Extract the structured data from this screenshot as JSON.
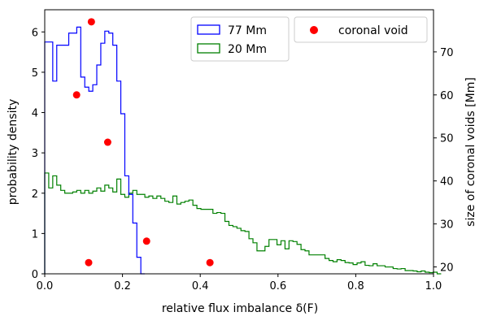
{
  "chart_data": {
    "type": "step-histogram",
    "xlabel": "relative flux imbalance δ(F)",
    "ylabel_left": "probability density",
    "ylabel_right": "size of coronal voids [Mm]",
    "xlim": [
      0.0,
      1.0
    ],
    "ylim_left": [
      0,
      6.55
    ],
    "ylim_right": [
      18.4,
      79.8
    ],
    "xticks": [
      "0.0",
      "0.2",
      "0.4",
      "0.6",
      "0.8",
      "1.0"
    ],
    "xtick_values": [
      0.0,
      0.2,
      0.4,
      0.6,
      0.8,
      1.0
    ],
    "yticks_left": [
      "0",
      "1",
      "2",
      "3",
      "4",
      "5",
      "6"
    ],
    "ytick_values_left": [
      0,
      1,
      2,
      3,
      4,
      5,
      6
    ],
    "yticks_right": [
      "20",
      "30",
      "40",
      "50",
      "60",
      "70"
    ],
    "ytick_values_right": [
      20,
      30,
      40,
      50,
      60,
      70
    ],
    "series": [
      {
        "name": "77 Mm",
        "color": "#0000ff",
        "axis": "left",
        "bin_width": 0.0103,
        "start": 0.0,
        "values": [
          5.75,
          5.75,
          4.78,
          5.67,
          5.67,
          5.67,
          5.97,
          5.97,
          6.12,
          4.88,
          4.63,
          4.53,
          4.69,
          5.18,
          5.72,
          6.02,
          5.97,
          5.67,
          4.78,
          3.97,
          2.43,
          1.97,
          1.26,
          0.41,
          0.0
        ]
      },
      {
        "name": "20 Mm",
        "color": "#008000",
        "axis": "left",
        "bin_width": 0.0103,
        "start": 0.0,
        "values": [
          2.5,
          2.13,
          2.43,
          2.2,
          2.07,
          2.0,
          2.0,
          2.03,
          2.07,
          2.0,
          2.07,
          2.0,
          2.05,
          2.13,
          2.05,
          2.2,
          2.13,
          2.03,
          2.35,
          1.97,
          1.9,
          2.0,
          2.07,
          1.97,
          1.97,
          1.9,
          1.93,
          1.87,
          1.93,
          1.87,
          1.8,
          1.77,
          1.93,
          1.73,
          1.77,
          1.8,
          1.83,
          1.7,
          1.62,
          1.6,
          1.6,
          1.6,
          1.5,
          1.52,
          1.5,
          1.3,
          1.2,
          1.17,
          1.13,
          1.07,
          1.05,
          0.87,
          0.77,
          0.57,
          0.57,
          0.68,
          0.85,
          0.85,
          0.72,
          0.82,
          0.62,
          0.82,
          0.8,
          0.73,
          0.6,
          0.57,
          0.47,
          0.47,
          0.47,
          0.47,
          0.38,
          0.33,
          0.3,
          0.35,
          0.33,
          0.28,
          0.27,
          0.23,
          0.27,
          0.3,
          0.21,
          0.2,
          0.25,
          0.2,
          0.2,
          0.17,
          0.17,
          0.13,
          0.12,
          0.13,
          0.08,
          0.08,
          0.07,
          0.05,
          0.07,
          0.04,
          0.03,
          0.04,
          0.0
        ]
      },
      {
        "name": "coronal void",
        "color": "#ff0000",
        "axis": "right",
        "kind": "scatter",
        "x": [
          0.12,
          0.082,
          0.162,
          0.262,
          0.113,
          0.425
        ],
        "y": [
          77,
          60,
          49,
          26,
          21,
          21
        ]
      }
    ],
    "legend": {
      "left_box": [
        "77 Mm",
        "20 Mm"
      ],
      "right_box": [
        "coronal void"
      ],
      "placement": "top-right"
    }
  }
}
